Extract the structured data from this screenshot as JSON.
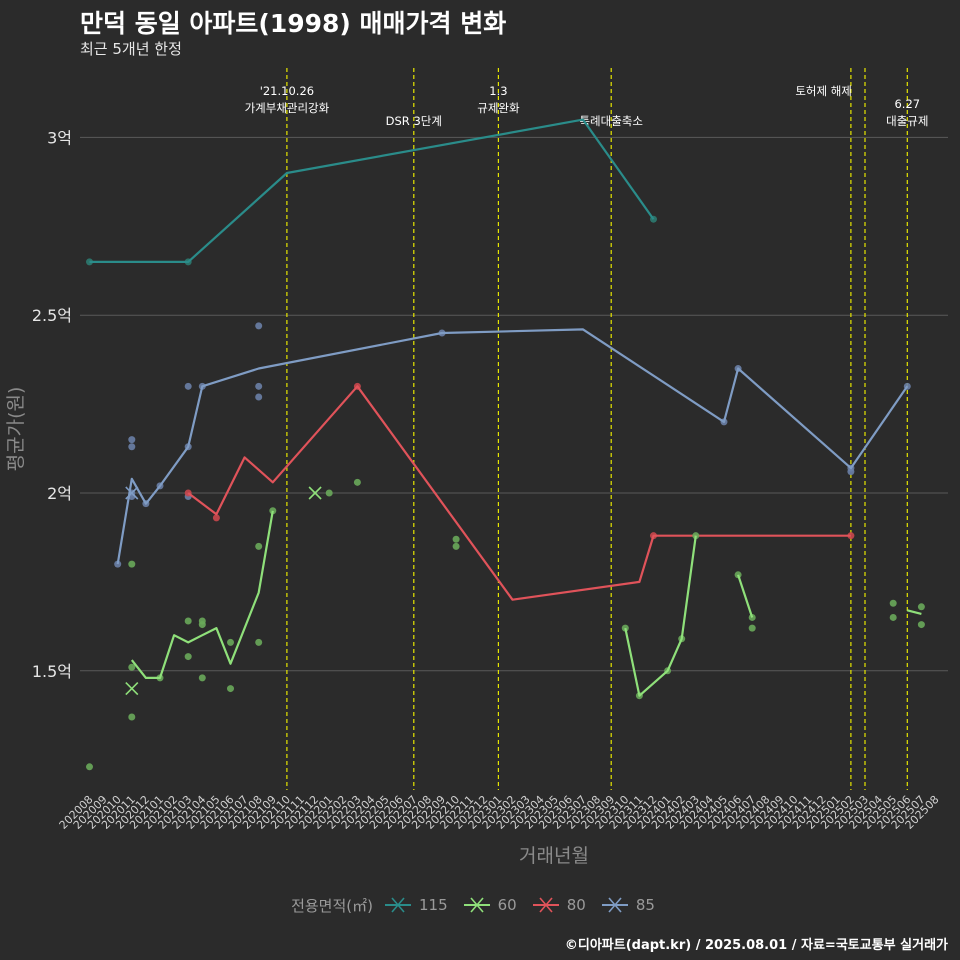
{
  "title": "만덕 동일 아파트(1998) 매매가격 변화",
  "subtitle": "최근 5개년 한정",
  "caption": "©디아파트(dapt.kr) / 2025.08.01 / 자료=국토교통부 실거래가",
  "legend": {
    "title": "전용면적(㎡)",
    "items": [
      {
        "label": "115",
        "color": "#2a8c8a"
      },
      {
        "label": "60",
        "color": "#8fe07a"
      },
      {
        "label": "80",
        "color": "#e0535a"
      },
      {
        "label": "85",
        "color": "#7f9cc4"
      }
    ]
  },
  "chart_data": {
    "type": "line",
    "xlabel": "거래년월",
    "ylabel": "평균가(원)",
    "ylim": [
      1.1,
      3.2
    ],
    "x_categories": [
      "202008",
      "202009",
      "202010",
      "202011",
      "202012",
      "202101",
      "202102",
      "202103",
      "202104",
      "202105",
      "202106",
      "202107",
      "202108",
      "202109",
      "202110",
      "202111",
      "202112",
      "202201",
      "202202",
      "202203",
      "202204",
      "202205",
      "202206",
      "202207",
      "202208",
      "202209",
      "202210",
      "202211",
      "202212",
      "202301",
      "202302",
      "202303",
      "202304",
      "202305",
      "202306",
      "202307",
      "202308",
      "202309",
      "202310",
      "202311",
      "202312",
      "202401",
      "202402",
      "202403",
      "202404",
      "202405",
      "202406",
      "202407",
      "202408",
      "202409",
      "202410",
      "202411",
      "202412",
      "202501",
      "202502",
      "202503",
      "202504",
      "202505",
      "202506",
      "202507",
      "202508"
    ],
    "y_ticks": [
      {
        "value": 1.5,
        "label": "1.5억"
      },
      {
        "value": 2.0,
        "label": "2억"
      },
      {
        "value": 2.5,
        "label": "2.5억"
      },
      {
        "value": 3.0,
        "label": "3억"
      }
    ],
    "grid": true,
    "legend_position": "bottom",
    "events": [
      {
        "x": "202110",
        "label_lines": [
          "'21.10.26",
          "가계부채관리강화"
        ],
        "row": 0
      },
      {
        "x": "202207",
        "label_lines": [
          "DSR 3단계"
        ],
        "row": 1
      },
      {
        "x": "202301",
        "label_lines": [
          "1.3",
          "규제완화"
        ],
        "row": 0
      },
      {
        "x": "202309",
        "label_lines": [
          "특례대출축소"
        ],
        "row": 1
      },
      {
        "x": "202502",
        "label_lines": [
          "토허제 해제"
        ],
        "row": 0,
        "anchor": "end"
      },
      {
        "x": "202503",
        "label_lines": [],
        "row": 0
      },
      {
        "x": "202506",
        "label_lines": [
          "6.27",
          "대출규제"
        ],
        "row": 1
      }
    ],
    "series": [
      {
        "name": "115",
        "color": "#2a8c8a",
        "line": [
          [
            "202008",
            2.65
          ],
          [
            "202103",
            2.65
          ],
          [
            "202110",
            2.9
          ],
          [
            "202307",
            3.05
          ],
          [
            "202312",
            2.77
          ]
        ],
        "points": [
          [
            "202008",
            2.65
          ],
          [
            "202103",
            2.65
          ],
          [
            "202312",
            2.77
          ]
        ]
      },
      {
        "name": "85",
        "color": "#7f9cc4",
        "line": [
          [
            "202010",
            1.8
          ],
          [
            "202011",
            2.04
          ],
          [
            "202012",
            1.97
          ],
          [
            "202101",
            2.02
          ],
          [
            "202103",
            2.13
          ],
          [
            "202104",
            2.3
          ],
          [
            "202108",
            2.35
          ],
          [
            "202209",
            2.45
          ],
          [
            "202307",
            2.46
          ],
          [
            "202405",
            2.2
          ],
          [
            "202406",
            2.35
          ],
          [
            "202502",
            2.07
          ],
          [
            "202506",
            2.3
          ]
        ],
        "points": [
          [
            "202010",
            1.8
          ],
          [
            "202011",
            2.0
          ],
          [
            "202011",
            1.99
          ],
          [
            "202011",
            2.13
          ],
          [
            "202011",
            2.15
          ],
          [
            "202012",
            1.97
          ],
          [
            "202101",
            2.02
          ],
          [
            "202103",
            2.3
          ],
          [
            "202103",
            2.13
          ],
          [
            "202103",
            1.99
          ],
          [
            "202104",
            2.3
          ],
          [
            "202108",
            2.47
          ],
          [
            "202108",
            2.3
          ],
          [
            "202108",
            2.27
          ],
          [
            "202209",
            2.45
          ],
          [
            "202405",
            2.2
          ],
          [
            "202406",
            2.35
          ],
          [
            "202502",
            2.06
          ],
          [
            "202502",
            2.07
          ],
          [
            "202506",
            2.3
          ]
        ],
        "cross": [
          [
            "202011",
            2.0
          ]
        ]
      },
      {
        "name": "80",
        "color": "#e0535a",
        "line": [
          [
            "202103",
            2.0
          ],
          [
            "202105",
            1.94
          ],
          [
            "202107",
            2.1
          ],
          [
            "202109",
            2.03
          ],
          [
            "202203",
            2.3
          ],
          [
            "202302",
            1.7
          ],
          [
            "202311",
            1.75
          ],
          [
            "202312",
            1.88
          ],
          [
            "202502",
            1.88
          ]
        ],
        "points": [
          [
            "202103",
            2.0
          ],
          [
            "202105",
            1.93
          ],
          [
            "202203",
            2.3
          ],
          [
            "202312",
            1.88
          ],
          [
            "202502",
            1.88
          ]
        ]
      },
      {
        "name": "60",
        "color": "#8fe07a",
        "segments": [
          [
            [
              "202011",
              1.53
            ],
            [
              "202012",
              1.48
            ],
            [
              "202101",
              1.48
            ],
            [
              "202102",
              1.6
            ],
            [
              "202103",
              1.58
            ],
            [
              "202104",
              1.6
            ],
            [
              "202105",
              1.62
            ],
            [
              "202106",
              1.52
            ],
            [
              "202108",
              1.72
            ],
            [
              "202109",
              1.95
            ]
          ],
          [
            [
              "202310",
              1.62
            ],
            [
              "202311",
              1.43
            ],
            [
              "202401",
              1.5
            ],
            [
              "202402",
              1.59
            ],
            [
              "202403",
              1.88
            ]
          ],
          [
            [
              "202406",
              1.77
            ],
            [
              "202407",
              1.65
            ]
          ],
          [
            [
              "202506",
              1.67
            ],
            [
              "202507",
              1.66
            ]
          ]
        ],
        "points": [
          [
            "202008",
            1.23
          ],
          [
            "202011",
            1.8
          ],
          [
            "202011",
            1.51
          ],
          [
            "202011",
            1.37
          ],
          [
            "202101",
            1.48
          ],
          [
            "202103",
            1.64
          ],
          [
            "202103",
            1.54
          ],
          [
            "202104",
            1.64
          ],
          [
            "202104",
            1.63
          ],
          [
            "202104",
            1.48
          ],
          [
            "202106",
            1.58
          ],
          [
            "202106",
            1.45
          ],
          [
            "202108",
            1.85
          ],
          [
            "202108",
            1.58
          ],
          [
            "202109",
            1.95
          ],
          [
            "202201",
            2.0
          ],
          [
            "202203",
            2.03
          ],
          [
            "202210",
            1.87
          ],
          [
            "202210",
            1.85
          ],
          [
            "202310",
            1.62
          ],
          [
            "202311",
            1.43
          ],
          [
            "202401",
            1.5
          ],
          [
            "202402",
            1.59
          ],
          [
            "202403",
            1.88
          ],
          [
            "202406",
            1.77
          ],
          [
            "202407",
            1.65
          ],
          [
            "202407",
            1.62
          ],
          [
            "202505",
            1.69
          ],
          [
            "202505",
            1.65
          ],
          [
            "202507",
            1.68
          ],
          [
            "202507",
            1.63
          ]
        ],
        "cross": [
          [
            "202011",
            1.45
          ],
          [
            "202112",
            2.0
          ]
        ]
      }
    ]
  }
}
